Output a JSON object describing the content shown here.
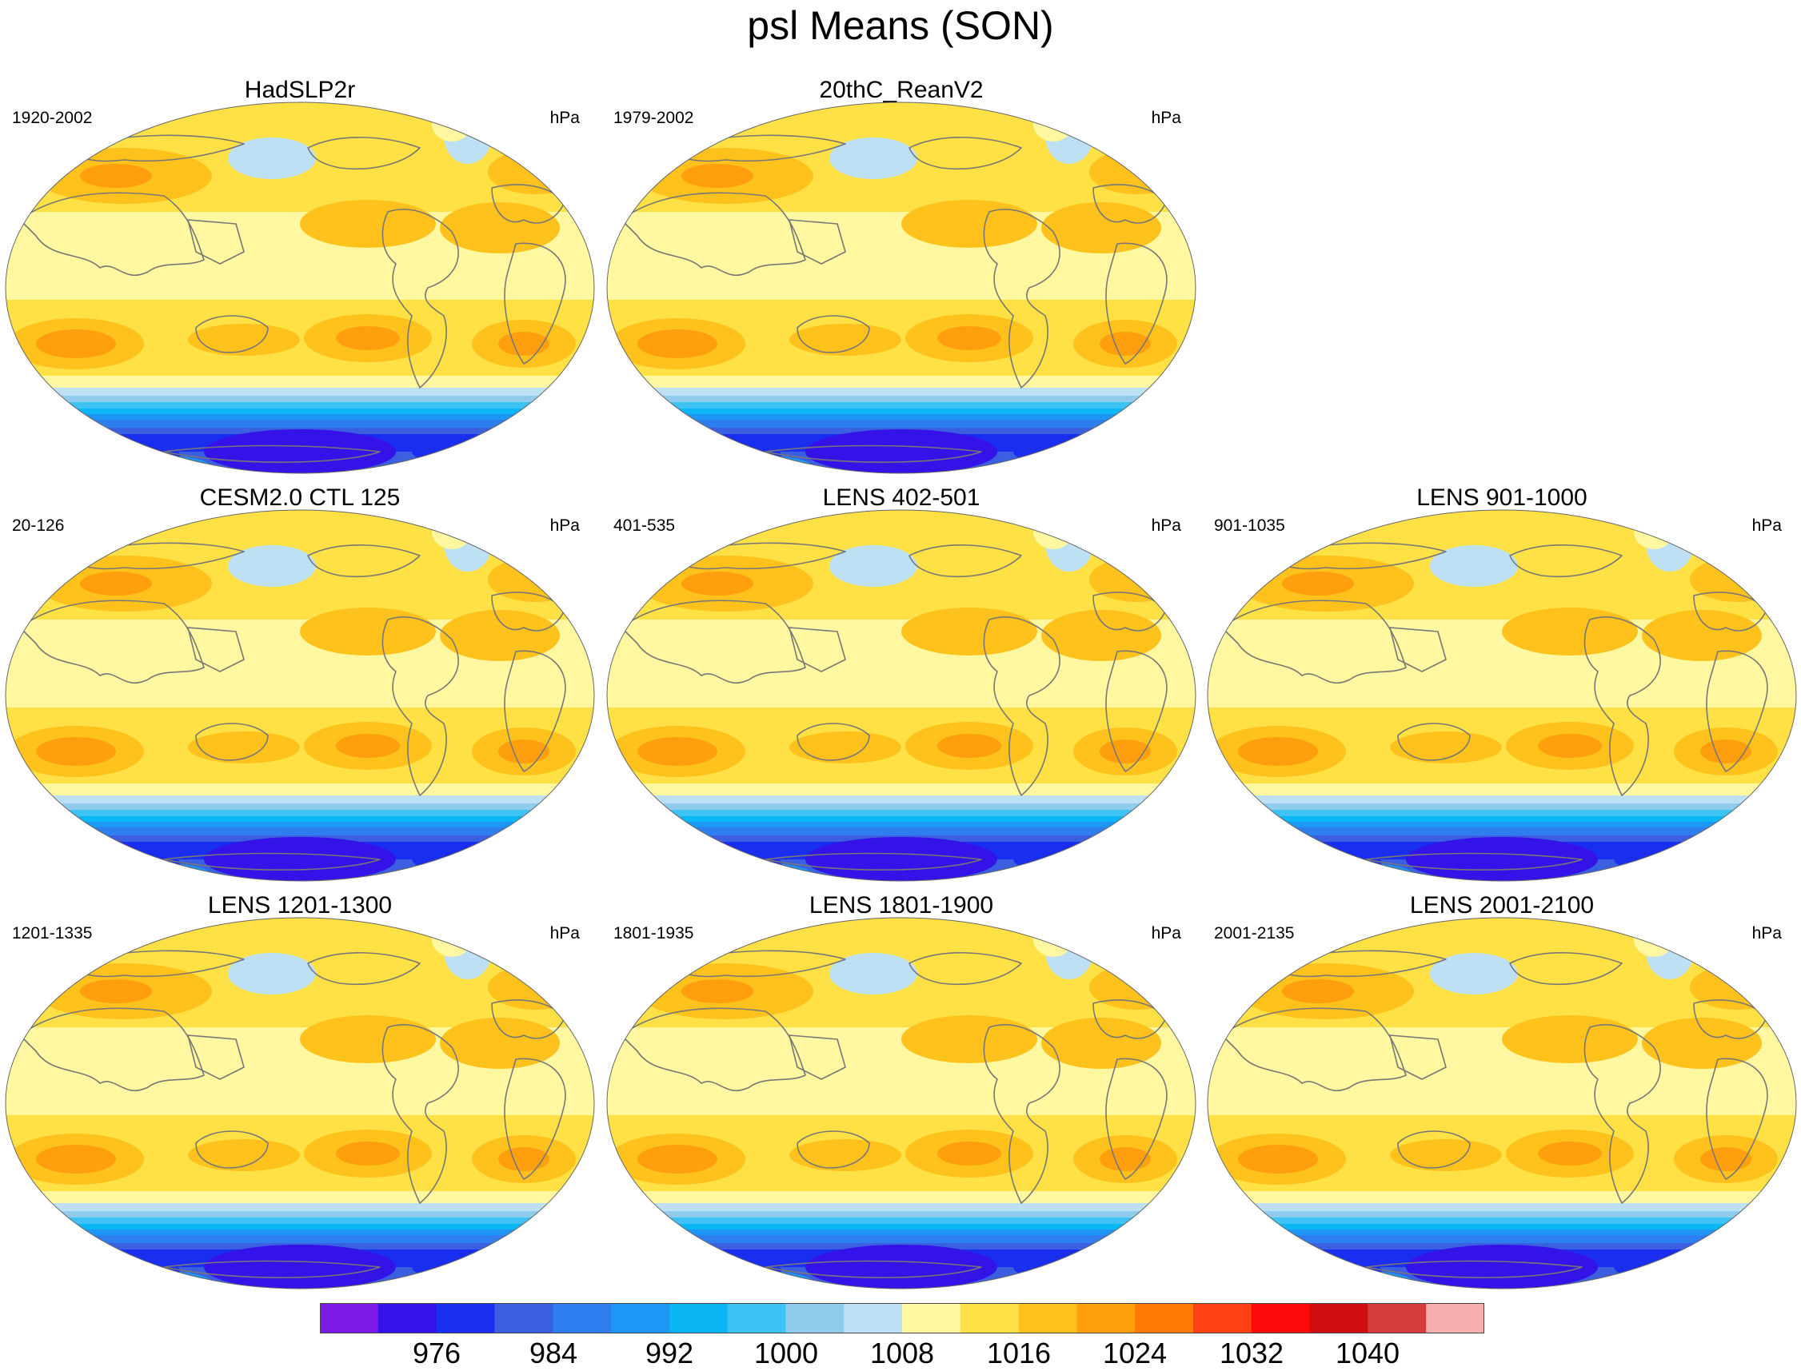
{
  "title": "psl Means (SON)",
  "colors": {
    "levels": [
      "#7c1ae8",
      "#3413e8",
      "#1a2ef0",
      "#3a5fe0",
      "#2f7ef0",
      "#1e96f5",
      "#0bb6f5",
      "#3cc3f3",
      "#8ecbec",
      "#bde0f4",
      "#fff8a0",
      "#ffe045",
      "#ffc21c",
      "#ff9f0e",
      "#ff7a06",
      "#ff4013",
      "#ff0a0a",
      "#cf0e12",
      "#d63c3c",
      "#f7aeae"
    ],
    "coast": "#777777"
  },
  "panels": [
    {
      "title": "HadSLP2r",
      "years": "1920-2002",
      "units": "hPa"
    },
    {
      "title": "20thC_ReanV2",
      "years": "1979-2002",
      "units": "hPa"
    },
    {
      "title": "CESM2.0 CTL 125",
      "years": "20-126",
      "units": "hPa"
    },
    {
      "title": "LENS 402-501",
      "years": "401-535",
      "units": "hPa"
    },
    {
      "title": "LENS 901-1000",
      "years": "901-1035",
      "units": "hPa"
    },
    {
      "title": "LENS 1201-1300",
      "years": "1201-1335",
      "units": "hPa"
    },
    {
      "title": "LENS 1801-1900",
      "years": "1801-1935",
      "units": "hPa"
    },
    {
      "title": "LENS 2001-2100",
      "years": "2001-2135",
      "units": "hPa"
    }
  ],
  "colorbar": {
    "labels": [
      "976",
      "984",
      "992",
      "1000",
      "1008",
      "1016",
      "1024",
      "1032",
      "1040"
    ]
  }
}
